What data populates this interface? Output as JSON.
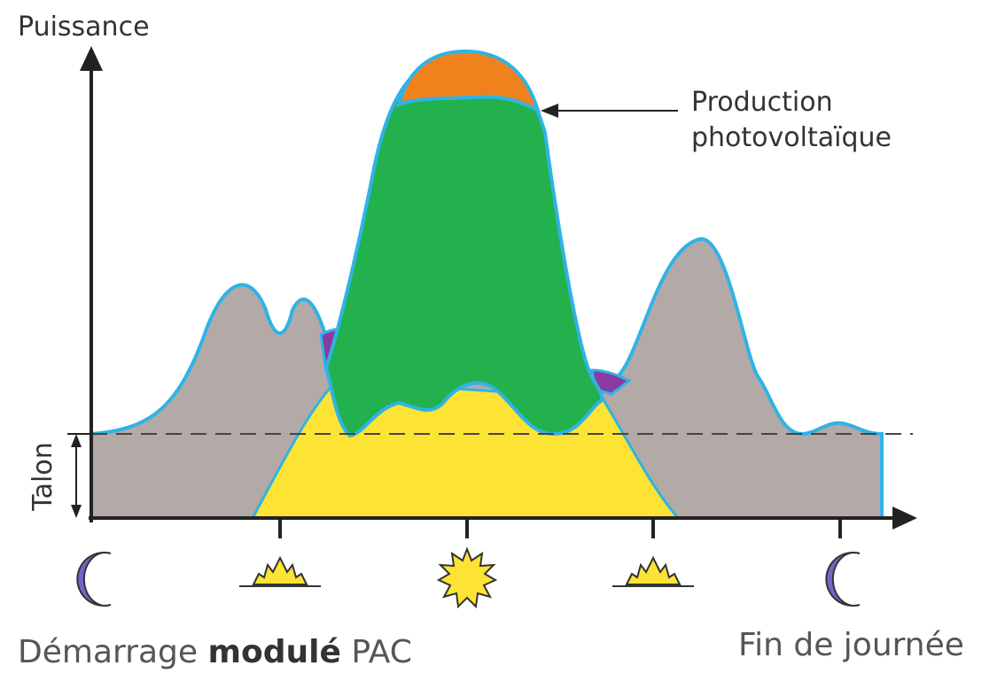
{
  "axis": {
    "y_label": "Puissance",
    "baseline_label": "Talon"
  },
  "annotation": {
    "lines": [
      "Production",
      "photovoltaïque"
    ]
  },
  "caption": {
    "left": [
      "Démarrage",
      "modulé",
      "PAC"
    ],
    "right": "Fin de journée"
  }
}
